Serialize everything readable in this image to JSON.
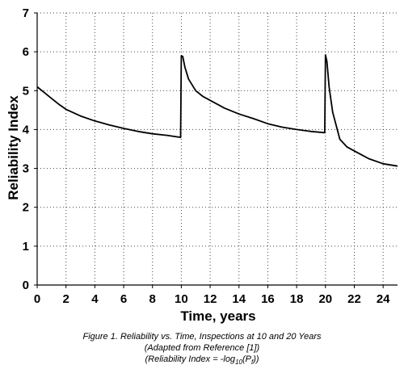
{
  "chart_data": {
    "type": "line",
    "xlabel": "Time, years",
    "ylabel": "Reliability Index",
    "xlim": [
      0,
      25
    ],
    "ylim": [
      0,
      7
    ],
    "x_ticks": [
      0,
      2,
      4,
      6,
      8,
      10,
      12,
      14,
      16,
      18,
      20,
      22,
      24
    ],
    "y_ticks": [
      0,
      1,
      2,
      3,
      4,
      5,
      6,
      7
    ],
    "grid": "dotted",
    "series": [
      {
        "color": "#000000",
        "points": [
          [
            0,
            5.1
          ],
          [
            0.5,
            4.95
          ],
          [
            1,
            4.8
          ],
          [
            1.5,
            4.65
          ],
          [
            2,
            4.52
          ],
          [
            3,
            4.35
          ],
          [
            4,
            4.22
          ],
          [
            5,
            4.12
          ],
          [
            6,
            4.03
          ],
          [
            7,
            3.95
          ],
          [
            8,
            3.89
          ],
          [
            9,
            3.85
          ],
          [
            9.95,
            3.8
          ],
          [
            10,
            5.9
          ],
          [
            10.1,
            5.88
          ],
          [
            10.25,
            5.6
          ],
          [
            10.5,
            5.3
          ],
          [
            11,
            5.0
          ],
          [
            11.5,
            4.85
          ],
          [
            12,
            4.75
          ],
          [
            13,
            4.55
          ],
          [
            14,
            4.4
          ],
          [
            15,
            4.28
          ],
          [
            16,
            4.15
          ],
          [
            17,
            4.06
          ],
          [
            18,
            4.0
          ],
          [
            19,
            3.95
          ],
          [
            19.95,
            3.92
          ],
          [
            20,
            5.92
          ],
          [
            20.1,
            5.75
          ],
          [
            20.25,
            5.1
          ],
          [
            20.5,
            4.45
          ],
          [
            21,
            3.75
          ],
          [
            21.5,
            3.55
          ],
          [
            22,
            3.45
          ],
          [
            22.5,
            3.35
          ],
          [
            23,
            3.25
          ],
          [
            24,
            3.12
          ],
          [
            25,
            3.06
          ]
        ]
      }
    ]
  },
  "caption": {
    "line1": "Figure 1. Reliability vs. Time, Inspections at 10 and 20 Years",
    "line2": "(Adapted from Reference [1])",
    "line3_prefix": "(Reliability Index = -log",
    "line3_sub1": "10",
    "line3_mid": "(P",
    "line3_sub2": "f",
    "line3_suffix": "))"
  }
}
